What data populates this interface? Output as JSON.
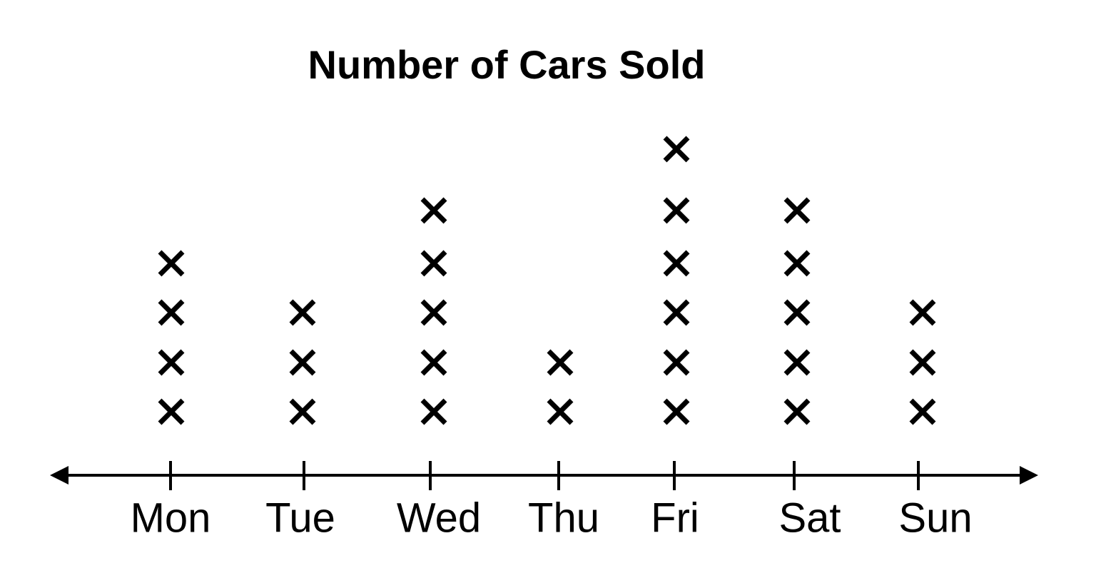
{
  "chart_data": {
    "type": "dotplot",
    "title": "Number of Cars Sold",
    "categories": [
      "Mon",
      "Tue",
      "Wed",
      "Thu",
      "Fri",
      "Sat",
      "Sun"
    ],
    "values": [
      4,
      3,
      5,
      2,
      6,
      5,
      3
    ],
    "color": "#000000"
  }
}
